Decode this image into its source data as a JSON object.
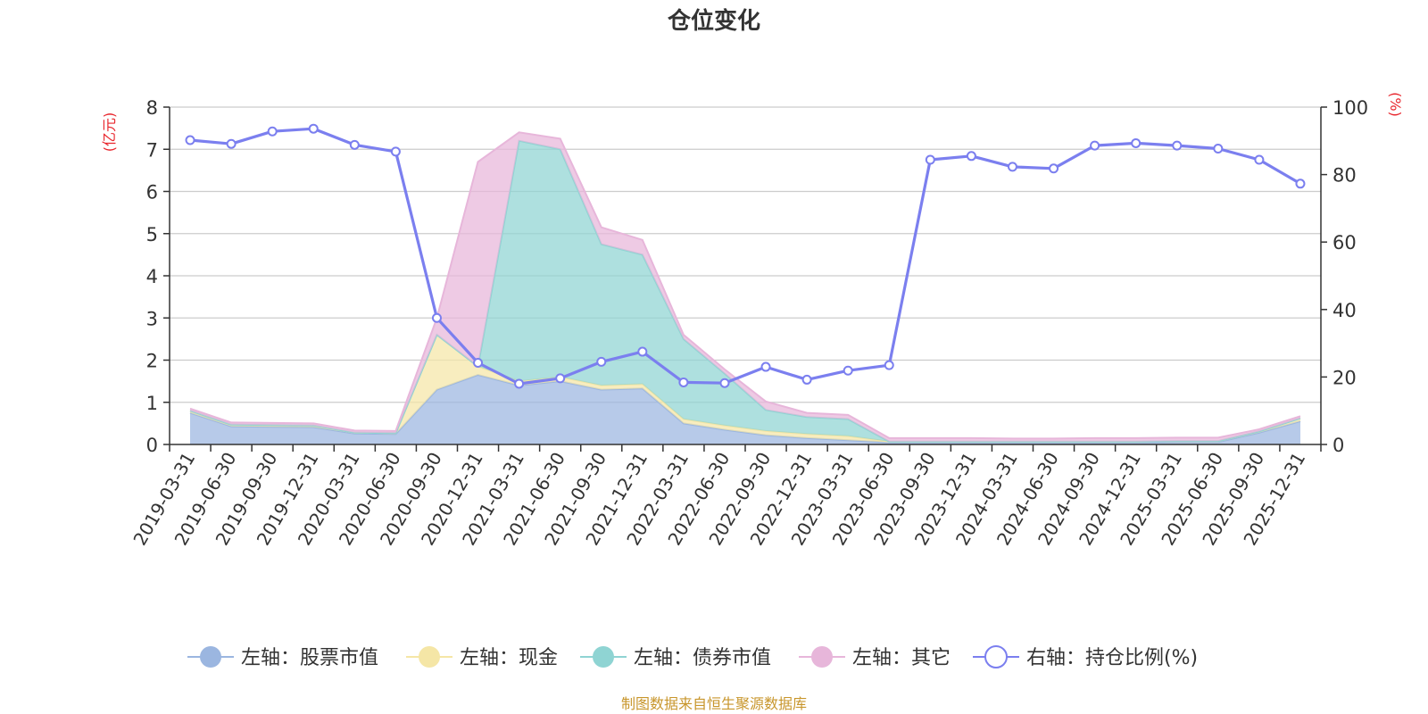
{
  "chart_data": {
    "type": "area",
    "title": "仓位变化",
    "source": "制图数据来自恒生聚源数据库",
    "left_axis": {
      "unit": "(亿元)",
      "range": [
        0,
        8
      ],
      "ticks": [
        "0",
        "1",
        "2",
        "3",
        "4",
        "5",
        "6",
        "7",
        "8"
      ]
    },
    "right_axis": {
      "unit": "(%)",
      "range": [
        0,
        100
      ],
      "ticks": [
        "0",
        "20",
        "40",
        "60",
        "80",
        "100"
      ]
    },
    "categories": [
      "2019-03-31",
      "2019-06-30",
      "2019-09-30",
      "2019-12-31",
      "2020-03-31",
      "2020-06-30",
      "2020-09-30",
      "2020-12-31",
      "2021-03-31",
      "2021-06-30",
      "2021-09-30",
      "2021-12-31",
      "2022-03-31",
      "2022-06-30",
      "2022-09-30",
      "2022-12-31",
      "2023-03-31",
      "2023-06-30",
      "2023-09-30",
      "2023-12-31",
      "2024-03-31",
      "2024-06-30",
      "2024-09-30",
      "2024-12-31",
      "2025-03-31",
      "2025-06-30",
      "2025-09-30",
      "2025-12-31"
    ],
    "series": [
      {
        "name": "左轴：股票市值",
        "axis": "left",
        "stacked": true,
        "color": "#9bb6e0",
        "values": [
          0.75,
          0.43,
          0.42,
          0.41,
          0.26,
          0.25,
          1.3,
          1.65,
          1.4,
          1.5,
          1.3,
          1.33,
          0.5,
          0.35,
          0.22,
          0.15,
          0.1,
          0.05,
          0.05,
          0.05,
          0.05,
          0.05,
          0.05,
          0.05,
          0.06,
          0.06,
          0.28,
          0.55
        ]
      },
      {
        "name": "左轴：现金",
        "axis": "left",
        "stacked": true,
        "color": "#f5e6a6",
        "values": [
          0.05,
          0.04,
          0.04,
          0.04,
          0.02,
          0.02,
          1.3,
          0.2,
          0.1,
          0.1,
          0.1,
          0.1,
          0.1,
          0.1,
          0.1,
          0.1,
          0.1,
          0.02,
          0.02,
          0.02,
          0.02,
          0.02,
          0.02,
          0.02,
          0.02,
          0.02,
          0.03,
          0.07
        ]
      },
      {
        "name": "左轴：债券市值",
        "axis": "left",
        "stacked": true,
        "color": "#8fd4d3",
        "values": [
          0,
          0,
          0,
          0,
          0,
          0,
          0,
          0,
          5.7,
          5.4,
          3.35,
          3.07,
          1.9,
          1.23,
          0.5,
          0.4,
          0.4,
          0,
          0,
          0,
          0,
          0,
          0,
          0,
          0,
          0,
          0,
          0
        ]
      },
      {
        "name": "左轴：其它",
        "axis": "left",
        "stacked": true,
        "color": "#e7b6da",
        "values": [
          0.05,
          0.05,
          0.05,
          0.05,
          0.05,
          0.05,
          0.4,
          4.85,
          0.2,
          0.25,
          0.4,
          0.35,
          0.1,
          0.1,
          0.2,
          0.1,
          0.1,
          0.08,
          0.08,
          0.08,
          0.07,
          0.07,
          0.08,
          0.08,
          0.08,
          0.08,
          0.05,
          0.05
        ]
      },
      {
        "name": "右轴：持仓比例(%)",
        "axis": "right",
        "type": "line",
        "color": "#7b7fef",
        "values": [
          90.2,
          89.1,
          92.8,
          93.6,
          88.8,
          86.8,
          37.5,
          24.2,
          18.0,
          19.6,
          24.5,
          27.5,
          18.4,
          18.2,
          23.0,
          19.2,
          21.9,
          23.5,
          84.4,
          85.5,
          82.3,
          81.8,
          88.6,
          89.3,
          88.6,
          87.7,
          84.4,
          77.3
        ]
      }
    ]
  }
}
